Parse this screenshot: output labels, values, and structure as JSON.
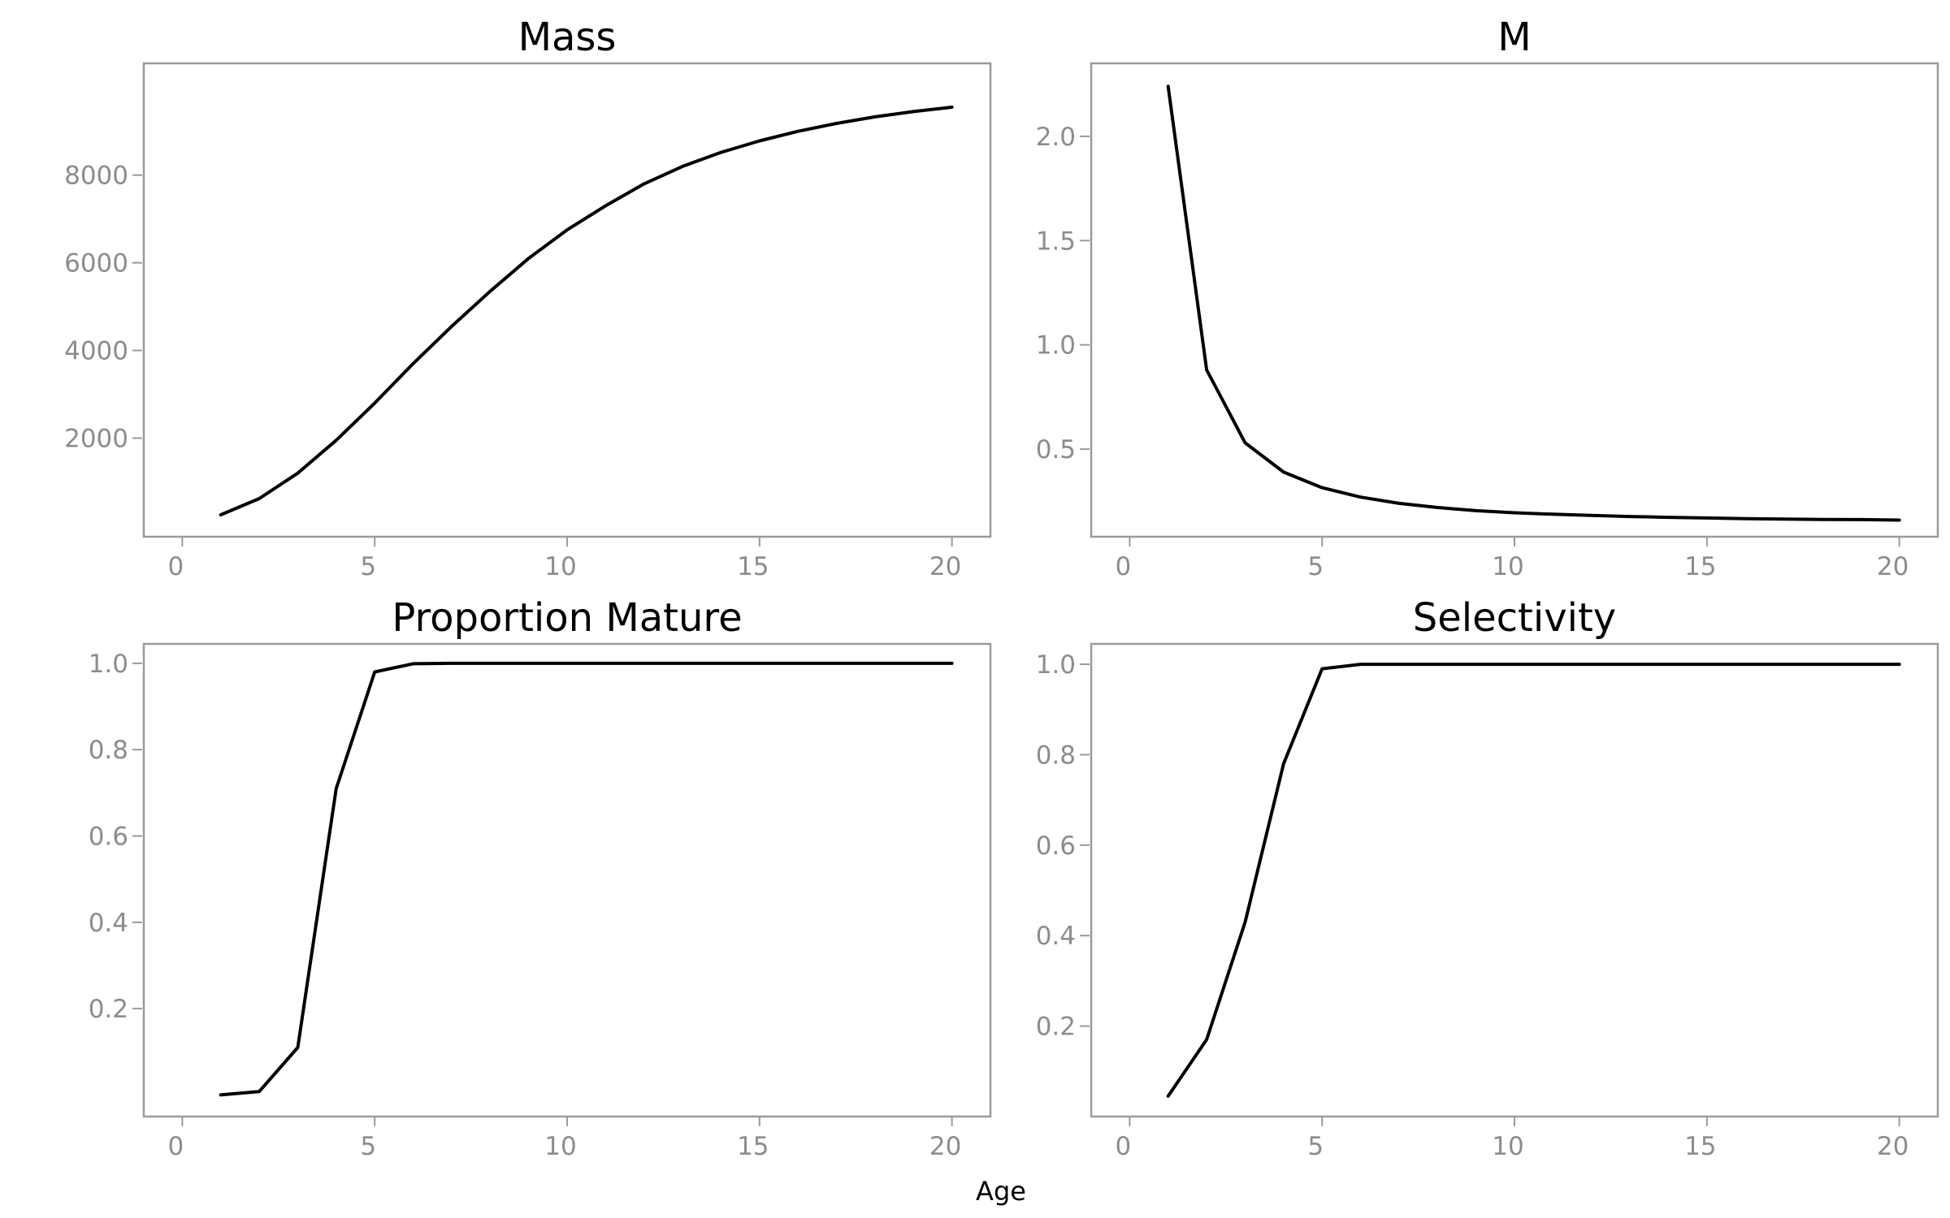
{
  "figure": {
    "xlabel": "Age"
  },
  "chart_data": [
    {
      "type": "line",
      "title": "Mass",
      "xlabel": "",
      "ylabel": "",
      "xlim": [
        -1,
        21
      ],
      "ylim": [
        -250,
        10550
      ],
      "xticks": [
        0,
        5,
        10,
        15,
        20
      ],
      "yticks": [
        2000,
        4000,
        6000,
        8000
      ],
      "grid": false,
      "x": [
        1,
        2,
        3,
        4,
        5,
        6,
        7,
        8,
        9,
        10,
        11,
        12,
        13,
        14,
        15,
        16,
        17,
        18,
        19,
        20
      ],
      "series": [
        {
          "values": [
            250,
            620,
            1200,
            1950,
            2800,
            3700,
            4550,
            5350,
            6100,
            6750,
            7300,
            7800,
            8200,
            8520,
            8780,
            9000,
            9180,
            9330,
            9450,
            9550
          ]
        }
      ]
    },
    {
      "type": "line",
      "title": "M",
      "xlabel": "",
      "ylabel": "",
      "xlim": [
        -1,
        21
      ],
      "ylim": [
        0.08,
        2.35
      ],
      "xticks": [
        0,
        5,
        10,
        15,
        20
      ],
      "yticks": [
        0.5,
        1.0,
        1.5,
        2.0
      ],
      "yticklabels": [
        "0.5",
        "1.0",
        "1.5",
        "2.0"
      ],
      "grid": false,
      "x": [
        1,
        2,
        3,
        4,
        5,
        6,
        7,
        8,
        9,
        10,
        11,
        12,
        13,
        14,
        15,
        16,
        17,
        18,
        19,
        20
      ],
      "series": [
        {
          "values": [
            2.24,
            0.88,
            0.53,
            0.39,
            0.315,
            0.27,
            0.24,
            0.22,
            0.205,
            0.195,
            0.188,
            0.182,
            0.177,
            0.173,
            0.17,
            0.167,
            0.165,
            0.163,
            0.162,
            0.16
          ]
        }
      ]
    },
    {
      "type": "line",
      "title": "Proportion Mature",
      "xlabel": "",
      "ylabel": "",
      "xlim": [
        -1,
        21
      ],
      "ylim": [
        -0.05,
        1.045
      ],
      "xticks": [
        0,
        5,
        10,
        15,
        20
      ],
      "yticks": [
        0.2,
        0.4,
        0.6,
        0.8,
        1.0
      ],
      "yticklabels": [
        "0.2",
        "0.4",
        "0.6",
        "0.8",
        "1.0"
      ],
      "grid": false,
      "x": [
        1,
        2,
        3,
        4,
        5,
        6,
        7,
        8,
        9,
        10,
        11,
        12,
        13,
        14,
        15,
        16,
        17,
        18,
        19,
        20
      ],
      "series": [
        {
          "values": [
            0.0,
            0.008,
            0.11,
            0.71,
            0.98,
            0.999,
            1.0,
            1.0,
            1.0,
            1.0,
            1.0,
            1.0,
            1.0,
            1.0,
            1.0,
            1.0,
            1.0,
            1.0,
            1.0,
            1.0
          ]
        }
      ]
    },
    {
      "type": "line",
      "title": "Selectivity",
      "xlabel": "",
      "ylabel": "",
      "xlim": [
        -1,
        21
      ],
      "ylim": [
        0.0,
        1.045
      ],
      "xticks": [
        0,
        5,
        10,
        15,
        20
      ],
      "yticks": [
        0.2,
        0.4,
        0.6,
        0.8,
        1.0
      ],
      "yticklabels": [
        "0.2",
        "0.4",
        "0.6",
        "0.8",
        "1.0"
      ],
      "grid": false,
      "x": [
        1,
        2,
        3,
        4,
        5,
        6,
        7,
        8,
        9,
        10,
        11,
        12,
        13,
        14,
        15,
        16,
        17,
        18,
        19,
        20
      ],
      "series": [
        {
          "values": [
            0.045,
            0.17,
            0.43,
            0.78,
            0.99,
            1.0,
            1.0,
            1.0,
            1.0,
            1.0,
            1.0,
            1.0,
            1.0,
            1.0,
            1.0,
            1.0,
            1.0,
            1.0,
            1.0,
            1.0
          ]
        }
      ]
    }
  ]
}
